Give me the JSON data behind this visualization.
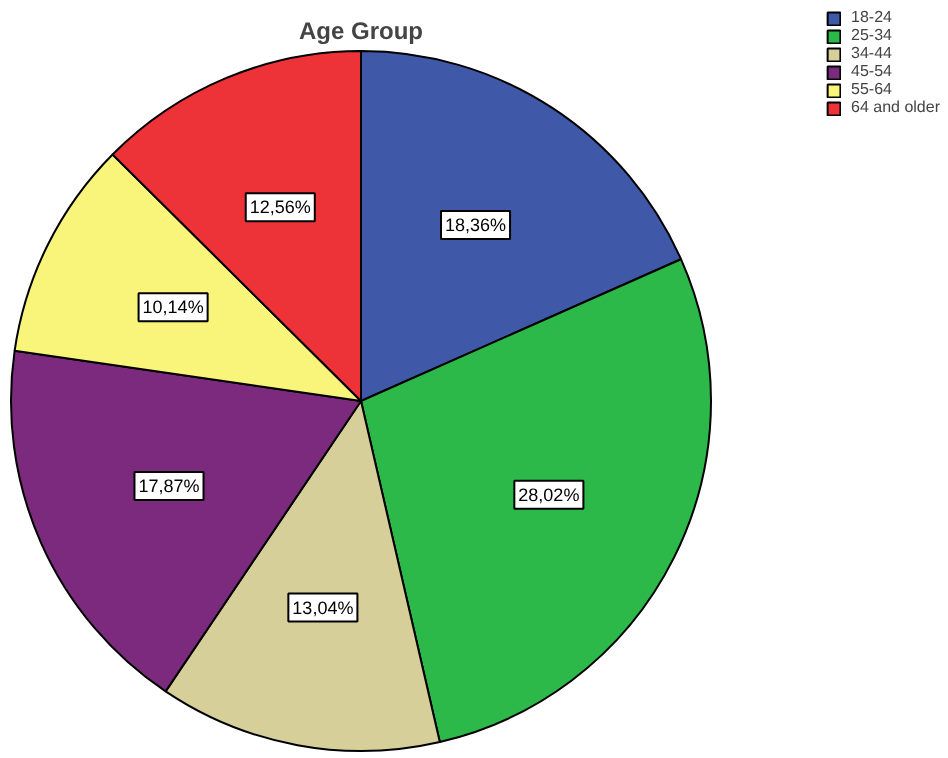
{
  "chart_data": {
    "type": "pie",
    "title": "Age Group",
    "categories": [
      "18-24",
      "25-34",
      "34-44",
      "45-54",
      "55-64",
      "64 and older"
    ],
    "values": [
      18.36,
      28.02,
      13.04,
      17.87,
      10.14,
      12.56
    ],
    "colors": [
      "#3f58a8",
      "#2db84a",
      "#d6cf9a",
      "#7b2a7d",
      "#f8f57a",
      "#ee3338"
    ],
    "value_labels": [
      "18,36%",
      "28,02%",
      "13,04%",
      "17,87%",
      "10,14%",
      "12,56%"
    ],
    "legend": "top right"
  }
}
